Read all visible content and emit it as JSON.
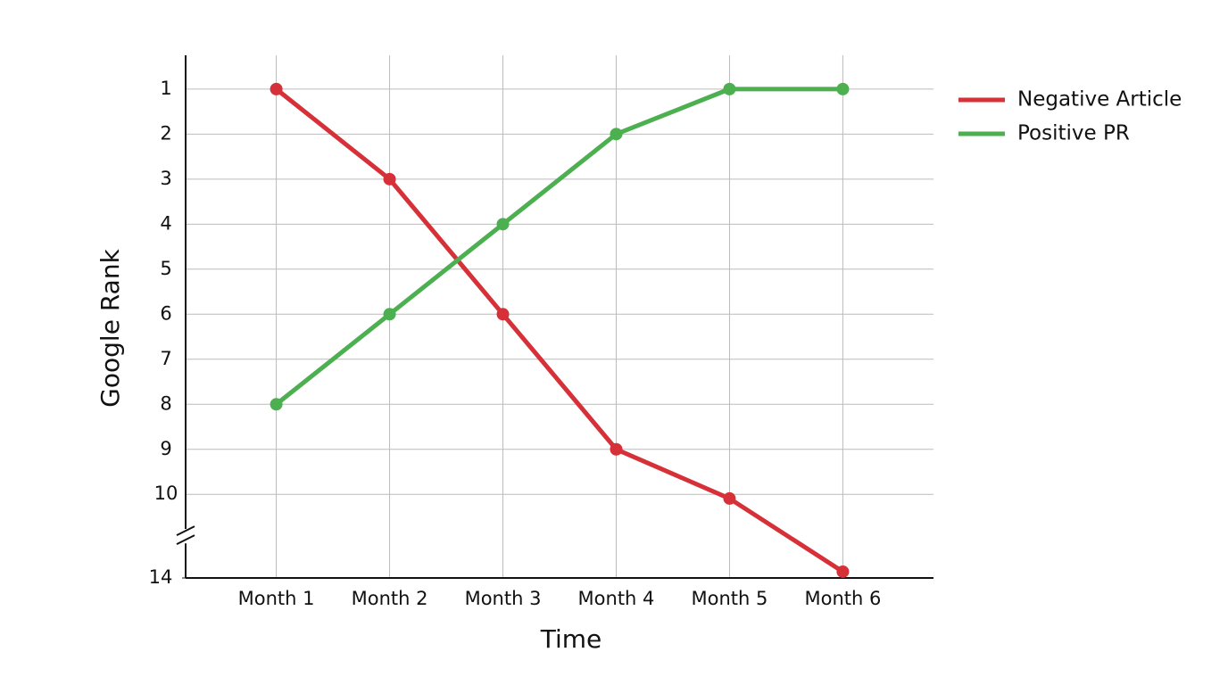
{
  "chart_data": {
    "type": "line",
    "x_label": "Time",
    "y_label": "Google Rank",
    "categories": [
      "Month 1",
      "Month 2",
      "Month 3",
      "Month 4",
      "Month 5",
      "Month 6"
    ],
    "series": [
      {
        "name": "Negative Article",
        "color": "#d63038",
        "values": [
          1,
          3,
          6,
          9,
          10.2,
          13.7
        ]
      },
      {
        "name": "Positive PR",
        "color": "#4caf50",
        "values": [
          8,
          6,
          4,
          2,
          1,
          1
        ]
      }
    ],
    "ylim": [
      14,
      0.25
    ],
    "yticks": [
      1,
      2,
      3,
      4,
      5,
      6,
      7,
      8,
      9,
      10,
      14
    ],
    "y_inverted": true,
    "y_axis_break": true,
    "grid": true,
    "legend": "right"
  }
}
